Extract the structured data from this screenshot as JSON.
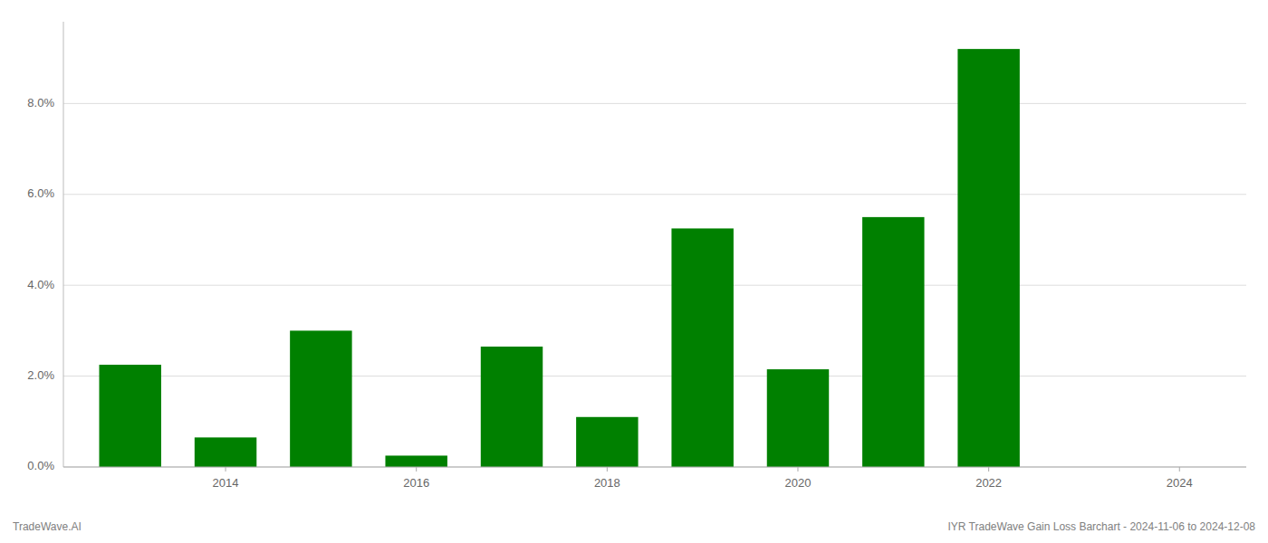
{
  "chart_data": {
    "type": "bar",
    "x": [
      2013,
      2014,
      2015,
      2016,
      2017,
      2018,
      2019,
      2020,
      2021,
      2022,
      2023
    ],
    "values": [
      0.0225,
      0.0065,
      0.03,
      0.0025,
      0.0265,
      0.011,
      0.0525,
      0.0215,
      0.055,
      0.092,
      0.0
    ],
    "color": "#008000",
    "xlim": [
      2012.3,
      2024.7
    ],
    "xticks": [
      2014,
      2016,
      2018,
      2020,
      2022,
      2024
    ],
    "ylim": [
      0,
      0.098
    ],
    "yticks": [
      {
        "value": 0.0,
        "label": "0.0%"
      },
      {
        "value": 0.02,
        "label": "2.0%"
      },
      {
        "value": 0.04,
        "label": "4.0%"
      },
      {
        "value": 0.06,
        "label": "6.0%"
      },
      {
        "value": 0.08,
        "label": "8.0%"
      }
    ],
    "grid": true,
    "annotations": [
      "TradeWave.AI",
      "IYR TradeWave Gain Loss Barchart - 2024-11-06 to 2024-12-08"
    ]
  }
}
